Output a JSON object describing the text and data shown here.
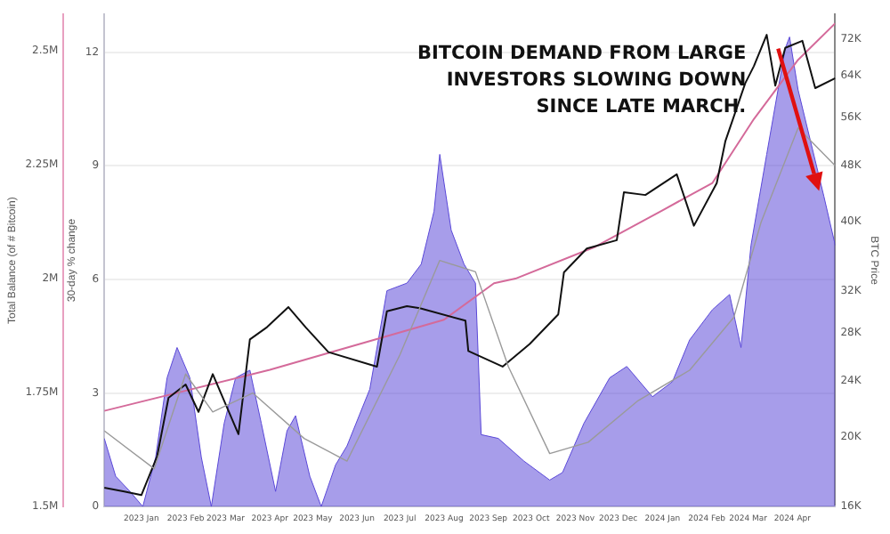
{
  "chart_data": {
    "type": "line",
    "ylabel": "30-day % change",
    "y2label": "BTC Price",
    "y3label": "Total Balance (of # Bitcoin)",
    "annotations": [
      {
        "text": "BITCOIN DEMAND FROM LARGE INVESTORS SLOWING DOWN SINCE LATE MARCH.",
        "x": "2024-03-27",
        "y": 12
      }
    ],
    "xlim": [
      "2022-12-06",
      "2024-05-01"
    ],
    "xticks": [
      {
        "value": "2023-01-01",
        "label": "2023 Jan"
      },
      {
        "value": "2023-02-01",
        "label": "2023 Feb"
      },
      {
        "value": "2023-03-01",
        "label": "2023 Mar"
      },
      {
        "value": "2023-04-01",
        "label": "2023 Apr"
      },
      {
        "value": "2023-05-01",
        "label": "2023 May"
      },
      {
        "value": "2023-06-01",
        "label": "2023 Jun"
      },
      {
        "value": "2023-07-01",
        "label": "2023 Jul"
      },
      {
        "value": "2023-08-01",
        "label": "2023 Aug"
      },
      {
        "value": "2023-09-01",
        "label": "2023 Sep"
      },
      {
        "value": "2023-10-01",
        "label": "2023 Oct"
      },
      {
        "value": "2023-11-01",
        "label": "2023 Nov"
      },
      {
        "value": "2023-12-01",
        "label": "2023 Dec"
      },
      {
        "value": "2024-01-01",
        "label": "2024 Jan"
      },
      {
        "value": "2024-02-01",
        "label": "2024 Feb"
      },
      {
        "value": "2024-03-01",
        "label": "2024 Mar"
      },
      {
        "value": "2024-04-01",
        "label": "2024 Apr"
      }
    ],
    "ylim": [
      0,
      13
    ],
    "yticks": [
      0,
      3,
      6,
      9,
      12
    ],
    "y2lim": [
      16000,
      78000
    ],
    "log": "y2",
    "y2ticks": [
      {
        "value": 16000,
        "label": "16K"
      },
      {
        "value": 20000,
        "label": "20K"
      },
      {
        "value": 24000,
        "label": "24K"
      },
      {
        "value": 28000,
        "label": "28K"
      },
      {
        "value": 32000,
        "label": "32K"
      },
      {
        "value": 40000,
        "label": "40K"
      },
      {
        "value": 48000,
        "label": "48K"
      },
      {
        "value": 56000,
        "label": "56K"
      },
      {
        "value": 64000,
        "label": "64K"
      },
      {
        "value": 72000,
        "label": "72K"
      }
    ],
    "y3lim": [
      1500000,
      2580000
    ],
    "y3ticks": [
      {
        "value": 1500000,
        "label": "1.5M"
      },
      {
        "value": 1750000,
        "label": "1.75M"
      },
      {
        "value": 2000000,
        "label": "2M"
      },
      {
        "value": 2250000,
        "label": "2.25M"
      },
      {
        "value": 2500000,
        "label": "2.5M"
      }
    ],
    "grid": "y",
    "legend": false,
    "marker": "none",
    "series": [
      {
        "type": "area",
        "color": "#5a48d8",
        "x": [
          "2022-12-06",
          "2022-12-14",
          "2022-12-24",
          "2023-01-02",
          "2023-01-11",
          "2023-01-19",
          "2023-01-26",
          "2023-02-04",
          "2023-02-12",
          "2023-02-19",
          "2023-02-28",
          "2023-03-08",
          "2023-03-18",
          "2023-03-26",
          "2023-04-05",
          "2023-04-13",
          "2023-04-19",
          "2023-04-29",
          "2023-05-07",
          "2023-05-17",
          "2023-05-25",
          "2023-06-10",
          "2023-06-22",
          "2023-07-06",
          "2023-07-16",
          "2023-07-25",
          "2023-07-29",
          "2023-08-06",
          "2023-08-15",
          "2023-08-23",
          "2023-08-27",
          "2023-09-08",
          "2023-09-26",
          "2023-10-14",
          "2023-10-23",
          "2023-11-07",
          "2023-11-25",
          "2023-12-07",
          "2023-12-25",
          "2024-01-08",
          "2024-01-20",
          "2024-02-05",
          "2024-02-17",
          "2024-02-25",
          "2024-03-03",
          "2024-03-14",
          "2024-03-27",
          "2024-03-30",
          "2024-04-05",
          "2024-04-23",
          "2024-05-01"
        ],
        "values": [
          1.8,
          0.8,
          0.4,
          0,
          1.3,
          3.4,
          4.2,
          3.4,
          1.3,
          0,
          2.2,
          3.4,
          3.6,
          2.2,
          0.4,
          2.0,
          2.4,
          0.8,
          0,
          1.1,
          1.6,
          3.1,
          5.7,
          5.9,
          6.4,
          7.8,
          9.3,
          7.3,
          6.4,
          5.9,
          1.9,
          1.8,
          1.2,
          0.7,
          0.9,
          2.2,
          3.4,
          3.7,
          2.9,
          3.3,
          4.4,
          5.2,
          5.6,
          4.2,
          6.9,
          9.3,
          12.1,
          12.4,
          11.0,
          8.2,
          6.9
        ]
      },
      {
        "type": "line",
        "color": "#9a9a9a",
        "x": [
          "2022-12-06",
          "2023-01-10",
          "2023-02-01",
          "2023-02-20",
          "2023-03-20",
          "2023-04-25",
          "2023-05-25",
          "2023-07-01",
          "2023-07-29",
          "2023-08-23",
          "2023-09-15",
          "2023-10-14",
          "2023-11-10",
          "2023-12-15",
          "2024-01-20",
          "2024-02-20",
          "2024-03-10",
          "2024-04-05",
          "2024-05-01"
        ],
        "values": [
          2.0,
          1.0,
          3.5,
          2.5,
          3.0,
          1.8,
          1.2,
          4.0,
          6.5,
          6.2,
          3.7,
          1.4,
          1.7,
          2.8,
          3.6,
          5.0,
          7.5,
          10.0,
          9.0
        ]
      },
      {
        "type": "line",
        "axis": "y2",
        "color": "#111111",
        "x": [
          "2022-12-06",
          "2022-12-20",
          "2023-01-01",
          "2023-01-12",
          "2023-01-20",
          "2023-02-01",
          "2023-02-10",
          "2023-02-20",
          "2023-03-10",
          "2023-03-18",
          "2023-03-30",
          "2023-04-14",
          "2023-04-26",
          "2023-05-12",
          "2023-06-15",
          "2023-06-22",
          "2023-07-06",
          "2023-07-15",
          "2023-08-16",
          "2023-08-18",
          "2023-09-11",
          "2023-09-30",
          "2023-10-20",
          "2023-10-24",
          "2023-11-09",
          "2023-11-30",
          "2023-12-05",
          "2023-12-20",
          "2024-01-11",
          "2024-01-23",
          "2024-02-08",
          "2024-02-14",
          "2024-02-28",
          "2024-03-05",
          "2024-03-14",
          "2024-03-20",
          "2024-03-27",
          "2024-04-08",
          "2024-04-17",
          "2024-05-01"
        ],
        "values": [
          17000,
          16800,
          16600,
          18800,
          22700,
          23700,
          21700,
          24500,
          20200,
          27400,
          28500,
          30400,
          28500,
          26300,
          25100,
          30000,
          30500,
          30300,
          29100,
          26400,
          25100,
          27000,
          29700,
          34000,
          36700,
          37700,
          44000,
          43600,
          46600,
          39500,
          45300,
          51800,
          62500,
          66000,
          73000,
          62000,
          70000,
          71600,
          61500,
          63500
        ]
      },
      {
        "type": "line",
        "axis": "y3",
        "color": "#d46a9a",
        "x": [
          "2022-12-06",
          "2023-04-01",
          "2023-08-01",
          "2023-09-05",
          "2023-09-20",
          "2023-11-15",
          "2024-01-01",
          "2024-02-05",
          "2024-03-05",
          "2024-04-05",
          "2024-05-01"
        ],
        "values": [
          1710000,
          1800000,
          1910000,
          1990000,
          2000000,
          2070000,
          2150000,
          2210000,
          2350000,
          2480000,
          2560000
        ]
      }
    ]
  }
}
